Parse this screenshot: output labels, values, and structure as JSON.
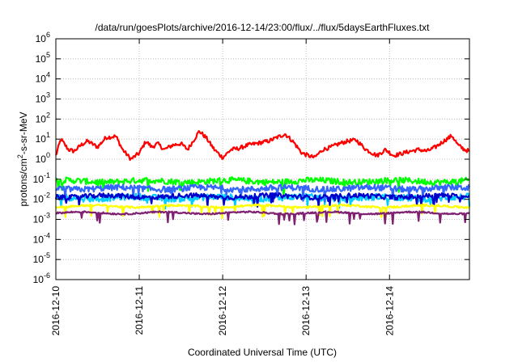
{
  "chart_data": {
    "type": "line",
    "title": "/data/run/goesPlots/archive/2016-12-14/23:00/flux/../flux/5daysEarthFluxes.txt",
    "xlabel": "Coordinated Universal Time (UTC)",
    "ylabel": {
      "base": "protons/cm",
      "sup": "2",
      "rest": "-s-sr-MeV"
    },
    "yscale": "log",
    "ylim_exponent": [
      -6,
      6
    ],
    "xlim": [
      "2016-12-10",
      "2016-12-14T23:00"
    ],
    "xticks": [
      "2016-12-10",
      "2016-12-11",
      "2016-12-12",
      "2016-12-13",
      "2016-12-14"
    ],
    "ytick_base": "10",
    "yticks_exponent": [
      "-6",
      "-5",
      "-4",
      "-3",
      "-2",
      "-1",
      "0",
      "1",
      "2",
      "3",
      "4",
      "5",
      "6"
    ],
    "grid": true,
    "x_day_start": 0,
    "x_day_end": 4.958,
    "series": [
      {
        "color": "#ff0000",
        "keypoints": [
          [
            0,
            1.5
          ],
          [
            0.06,
            10
          ],
          [
            0.15,
            3
          ],
          [
            0.22,
            2.5
          ],
          [
            0.3,
            5
          ],
          [
            0.38,
            8
          ],
          [
            0.5,
            4
          ],
          [
            0.6,
            12
          ],
          [
            0.72,
            14
          ],
          [
            0.8,
            3
          ],
          [
            0.9,
            1
          ],
          [
            1.0,
            2
          ],
          [
            1.08,
            8
          ],
          [
            1.15,
            4
          ],
          [
            1.22,
            6
          ],
          [
            1.3,
            3
          ],
          [
            1.4,
            5
          ],
          [
            1.5,
            6
          ],
          [
            1.58,
            3
          ],
          [
            1.66,
            10
          ],
          [
            1.72,
            25
          ],
          [
            1.8,
            12
          ],
          [
            1.9,
            3
          ],
          [
            2.0,
            1.2
          ],
          [
            2.1,
            3
          ],
          [
            2.2,
            3.5
          ],
          [
            2.3,
            5
          ],
          [
            2.4,
            6
          ],
          [
            2.55,
            8
          ],
          [
            2.65,
            12
          ],
          [
            2.75,
            18
          ],
          [
            2.85,
            7
          ],
          [
            2.95,
            2
          ],
          [
            3.03,
            1.5
          ],
          [
            3.1,
            1.2
          ],
          [
            3.2,
            3
          ],
          [
            3.3,
            4
          ],
          [
            3.4,
            6
          ],
          [
            3.5,
            8
          ],
          [
            3.6,
            9
          ],
          [
            3.72,
            3
          ],
          [
            3.85,
            1.5
          ],
          [
            3.95,
            3
          ],
          [
            4.05,
            1.5
          ],
          [
            4.12,
            1.8
          ],
          [
            4.25,
            2.5
          ],
          [
            4.35,
            3
          ],
          [
            4.45,
            2.5
          ],
          [
            4.55,
            4
          ],
          [
            4.65,
            8
          ],
          [
            4.75,
            15
          ],
          [
            4.82,
            5
          ],
          [
            4.9,
            3
          ],
          [
            4.958,
            2.5
          ]
        ],
        "amp": 0.1
      },
      {
        "color": "#00ff00",
        "base": 0.08,
        "amp": 0.15
      },
      {
        "color": "#00ccff",
        "base": 0.012,
        "amp": 0.16
      },
      {
        "color": "#3366ff",
        "base": 0.035,
        "amp": 0.15
      },
      {
        "color": "#0000cc",
        "base": 0.014,
        "amp": 0.12
      },
      {
        "color": "#ffff00",
        "base": 0.0045,
        "amp": 0.05
      },
      {
        "color": "#7f2070",
        "base": 0.0021,
        "amp": 0.04
      }
    ]
  }
}
